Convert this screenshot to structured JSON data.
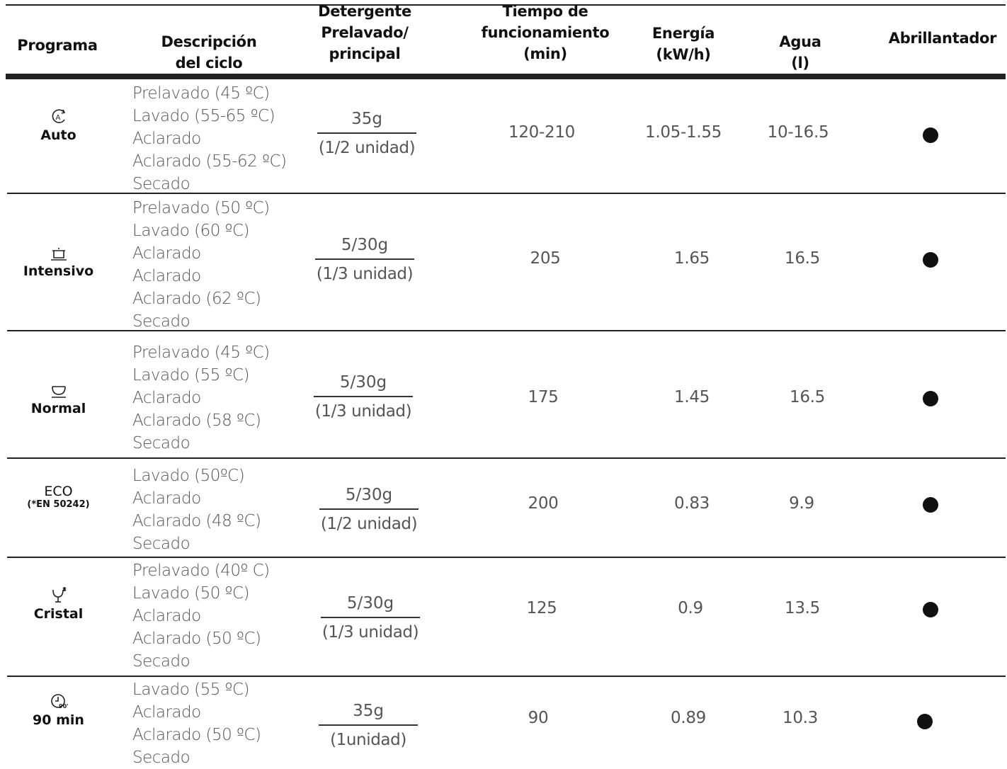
{
  "headers": {
    "programa": "Programa",
    "descripcion_1": "Descripción",
    "descripcion_2": "del ciclo",
    "detergente_1": "Detergente",
    "detergente_2": "Prelavado/",
    "detergente_3": "principal",
    "tiempo_1": "Tiempo de",
    "tiempo_2": "funcionamiento",
    "tiempo_3": "(min)",
    "energia_1": "Energía",
    "energia_2": "(kW/h)",
    "agua_1": "Agua",
    "agua_2": "(l)",
    "abrillantador": "Abrillantador"
  },
  "rows": [
    {
      "icon": "auto-icon",
      "program": "Auto",
      "program_sub": "",
      "cycle": [
        "Prelavado (45 ºC)",
        "Lavado (55-65 ºC)",
        "Aclarado",
        "Aclarado (55-62 ºC)",
        "Secado"
      ],
      "detergent_top": "35g",
      "detergent_bottom": "(1/2 unidad)",
      "time": "120-210",
      "energy": "1.05-1.55",
      "water": "10-16.5",
      "rinse_aid": true
    },
    {
      "icon": "pot-icon",
      "program": "Intensivo",
      "program_sub": "",
      "cycle": [
        "Prelavado (50 ºC)",
        "Lavado (60 ºC)",
        "Aclarado",
        "Aclarado",
        "Aclarado (62 ºC)",
        "Secado"
      ],
      "detergent_top": "5/30g",
      "detergent_bottom": "(1/3 unidad)",
      "time": "205",
      "energy": "1.65",
      "water": "16.5",
      "rinse_aid": true
    },
    {
      "icon": "bowl-icon",
      "program": "Normal",
      "program_sub": "",
      "cycle": [
        "Prelavado (45 ºC)",
        "Lavado (55 ºC)",
        "Aclarado",
        "Aclarado (58 ºC)",
        "Secado"
      ],
      "detergent_top": "5/30g",
      "detergent_bottom": "(1/3 unidad)",
      "time": "175",
      "energy": "1.45",
      "water": "16.5",
      "rinse_aid": true
    },
    {
      "icon": "",
      "program": "ECO",
      "program_sub": "(*EN 50242)",
      "cycle": [
        "Lavado (50ºC)",
        "Aclarado",
        "Aclarado (48 ºC)",
        "Secado"
      ],
      "detergent_top": "5/30g",
      "detergent_bottom": "(1/2 unidad)",
      "time": "200",
      "energy": "0.83",
      "water": "9.9",
      "rinse_aid": true
    },
    {
      "icon": "glass-icon",
      "program": "Cristal",
      "program_sub": "",
      "cycle": [
        "Prelavado (40º C)",
        "Lavado (50 ºC)",
        "Aclarado",
        "Aclarado (50 ºC)",
        "Secado"
      ],
      "detergent_top": "5/30g",
      "detergent_bottom": "(1/3 unidad)",
      "time": "125",
      "energy": "0.9",
      "water": "13.5",
      "rinse_aid": true
    },
    {
      "icon": "clock-90-icon",
      "program": "90 min",
      "program_sub": "",
      "cycle": [
        "Lavado (55 ºC)",
        "Aclarado",
        "Aclarado (50 ºC)",
        "Secado"
      ],
      "detergent_top": "35g",
      "detergent_bottom": "(1unidad)",
      "time": "90",
      "energy": "0.89",
      "water": "10.3",
      "rinse_aid": true
    }
  ]
}
